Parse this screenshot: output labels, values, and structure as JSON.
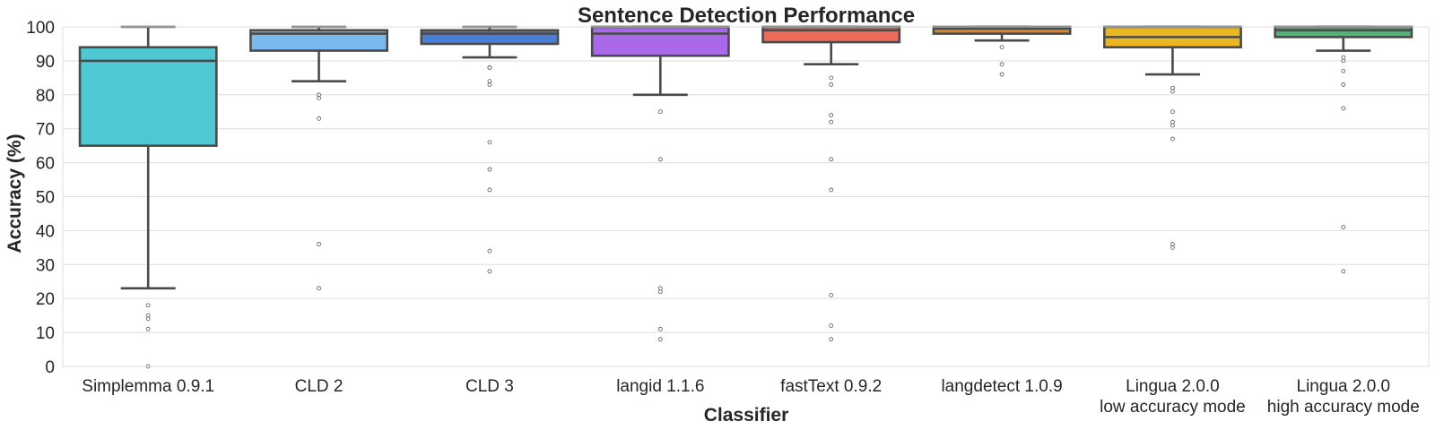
{
  "chart_data": {
    "type": "box",
    "title": "Sentence Detection Performance",
    "xlabel": "Classifier",
    "ylabel": "Accuracy (%)",
    "ylim": [
      0,
      100
    ],
    "yticks": [
      0,
      10,
      20,
      30,
      40,
      50,
      60,
      70,
      80,
      90,
      100
    ],
    "grid": "horizontal",
    "categories": [
      {
        "label": [
          "Simplemma 0.9.1"
        ],
        "color": "#4EC8D2",
        "q1": 65,
        "median": 90,
        "q3": 94,
        "whisker_low": 23,
        "whisker_high": 100,
        "outliers": [
          18,
          15,
          14,
          11,
          0
        ]
      },
      {
        "label": [
          "CLD 2"
        ],
        "color": "#79B9EE",
        "q1": 93,
        "median": 98,
        "q3": 99,
        "whisker_low": 84,
        "whisker_high": 100,
        "outliers": [
          80,
          79,
          73,
          36,
          23
        ]
      },
      {
        "label": [
          "CLD 3"
        ],
        "color": "#4A7FD9",
        "q1": 95,
        "median": 98,
        "q3": 99,
        "whisker_low": 91,
        "whisker_high": 100,
        "outliers": [
          88,
          88,
          84,
          83,
          66,
          58,
          52,
          34,
          28
        ]
      },
      {
        "label": [
          "langid 1.1.6"
        ],
        "color": "#A969E8",
        "q1": 91.5,
        "median": 98,
        "q3": 100,
        "whisker_low": 80,
        "whisker_high": 100,
        "outliers": [
          75,
          61,
          23,
          22,
          11,
          8
        ]
      },
      {
        "label": [
          "fastText 0.9.2"
        ],
        "color": "#EE6B5A",
        "q1": 95.5,
        "median": 99,
        "q3": 100,
        "whisker_low": 89,
        "whisker_high": 100,
        "outliers": [
          85,
          83,
          74,
          72,
          61,
          52,
          21,
          12,
          8
        ]
      },
      {
        "label": [
          "langdetect 1.0.9"
        ],
        "color": "#D58A2C",
        "q1": 98,
        "median": 99.5,
        "q3": 100,
        "whisker_low": 96,
        "whisker_high": 100,
        "outliers": [
          94,
          89,
          86
        ]
      },
      {
        "label": [
          "Lingua 2.0.0",
          "low accuracy mode"
        ],
        "color": "#EAB622",
        "q1": 94,
        "median": 97,
        "q3": 100,
        "whisker_low": 86,
        "whisker_high": 100,
        "outliers": [
          82,
          81,
          75,
          72,
          71,
          67,
          36,
          35
        ]
      },
      {
        "label": [
          "Lingua 2.0.0",
          "high accuracy mode"
        ],
        "color": "#4CB878",
        "q1": 97,
        "median": 99,
        "q3": 100,
        "whisker_low": 93,
        "whisker_high": 100,
        "outliers": [
          91,
          90,
          87,
          83,
          76,
          41,
          28
        ]
      }
    ]
  }
}
